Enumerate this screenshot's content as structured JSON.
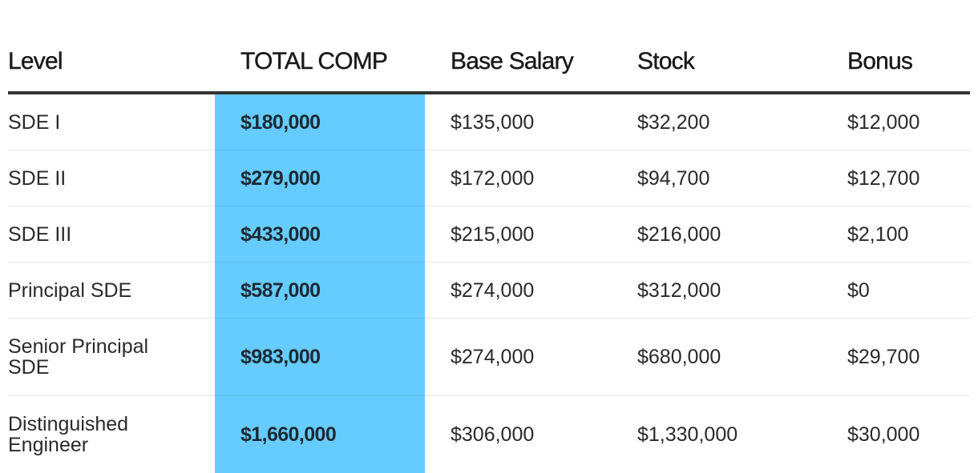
{
  "table": {
    "headers": {
      "level": "Level",
      "total_comp": "TOTAL COMP",
      "base_salary": "Base Salary",
      "stock": "Stock",
      "bonus": "Bonus"
    },
    "rows": [
      {
        "level": "SDE I",
        "total_comp": "$180,000",
        "base_salary": "$135,000",
        "stock": "$32,200",
        "bonus": "$12,000"
      },
      {
        "level": "SDE II",
        "total_comp": "$279,000",
        "base_salary": "$172,000",
        "stock": "$94,700",
        "bonus": "$12,700"
      },
      {
        "level": "SDE III",
        "total_comp": "$433,000",
        "base_salary": "$215,000",
        "stock": "$216,000",
        "bonus": "$2,100"
      },
      {
        "level": "Principal SDE",
        "total_comp": "$587,000",
        "base_salary": "$274,000",
        "stock": "$312,000",
        "bonus": "$0"
      },
      {
        "level": "Senior Principal SDE",
        "total_comp": "$983,000",
        "base_salary": "$274,000",
        "stock": "$680,000",
        "bonus": "$29,700"
      },
      {
        "level": "Distinguished Engineer",
        "total_comp": "$1,660,000",
        "base_salary": "$306,000",
        "stock": "$1,330,000",
        "bonus": "$30,000"
      }
    ]
  },
  "colors": {
    "highlight_column": "#66ccff",
    "header_rule": "#333333",
    "row_divider": "#e6e6e6"
  }
}
